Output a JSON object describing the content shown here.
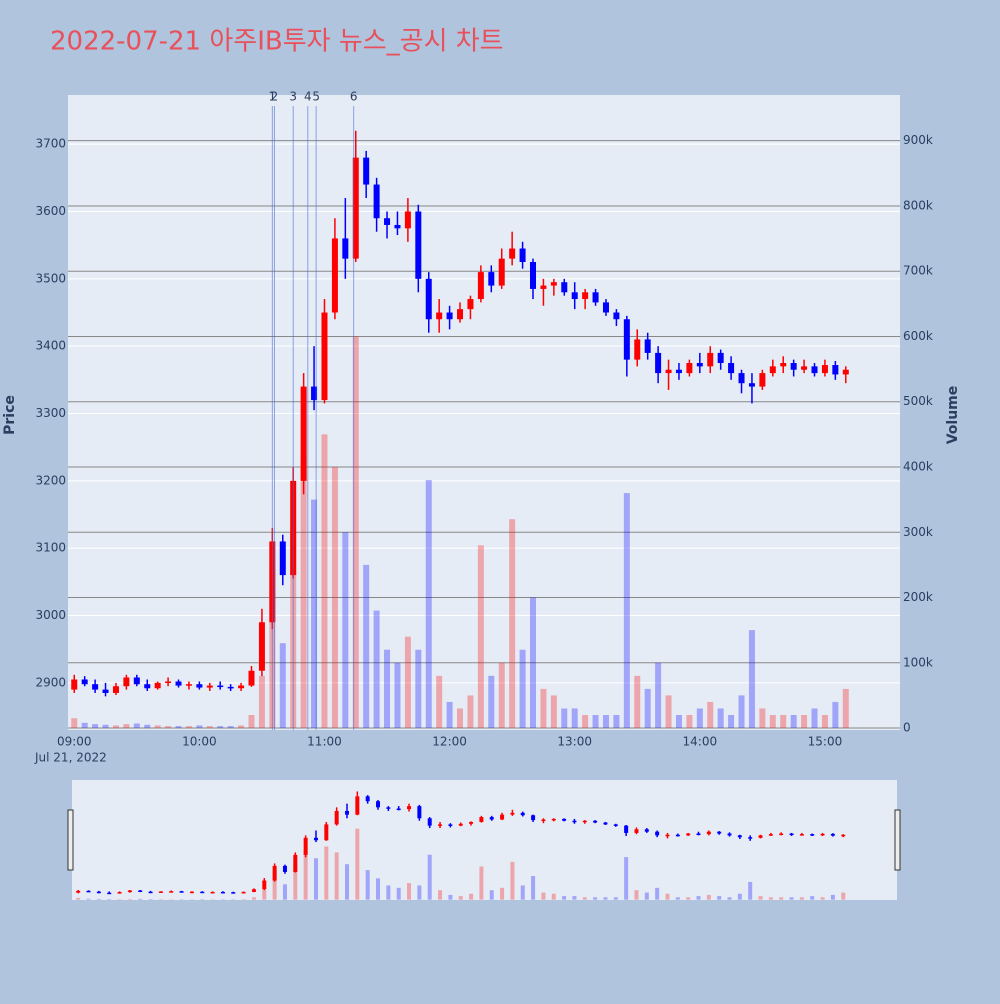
{
  "chart_data": {
    "type": "candlestick",
    "title": "2022-07-21 아주IB투자 뉴스_공시 차트",
    "y_title": "Price",
    "y2_title": "Volume",
    "x_date_label": "Jul 21, 2022",
    "increasing_color": "#ff0000",
    "decreasing_color": "#0000ff",
    "x": [
      "09:00",
      "09:05",
      "09:10",
      "09:15",
      "09:20",
      "09:25",
      "09:30",
      "09:35",
      "09:40",
      "09:45",
      "09:50",
      "09:55",
      "10:00",
      "10:05",
      "10:10",
      "10:15",
      "10:20",
      "10:25",
      "10:30",
      "10:35",
      "10:40",
      "10:45",
      "10:50",
      "10:55",
      "11:00",
      "11:05",
      "11:10",
      "11:15",
      "11:20",
      "11:25",
      "11:30",
      "11:35",
      "11:40",
      "11:45",
      "11:50",
      "11:55",
      "12:00",
      "12:05",
      "12:10",
      "12:15",
      "12:20",
      "12:25",
      "12:30",
      "12:35",
      "12:40",
      "12:45",
      "12:50",
      "12:55",
      "13:00",
      "13:05",
      "13:10",
      "13:15",
      "13:20",
      "13:25",
      "13:30",
      "13:35",
      "13:40",
      "13:45",
      "13:50",
      "13:55",
      "14:00",
      "14:05",
      "14:10",
      "14:15",
      "14:20",
      "14:25",
      "14:30",
      "14:35",
      "14:40",
      "14:45",
      "14:50",
      "14:55",
      "15:00",
      "15:05",
      "15:10"
    ],
    "open": [
      2890,
      2905,
      2898,
      2890,
      2885,
      2895,
      2908,
      2898,
      2892,
      2900,
      2902,
      2896,
      2898,
      2893,
      2896,
      2894,
      2892,
      2896,
      2918,
      2990,
      3110,
      3060,
      3200,
      3340,
      3320,
      3450,
      3560,
      3530,
      3680,
      3640,
      3590,
      3580,
      3575,
      3600,
      3500,
      3440,
      3450,
      3440,
      3455,
      3470,
      3510,
      3490,
      3530,
      3545,
      3525,
      3485,
      3490,
      3495,
      3480,
      3470,
      3480,
      3465,
      3450,
      3440,
      3380,
      3410,
      3390,
      3360,
      3365,
      3360,
      3375,
      3370,
      3390,
      3375,
      3360,
      3345,
      3340,
      3360,
      3370,
      3375,
      3365,
      3370,
      3360,
      3372,
      3358
    ],
    "high": [
      2912,
      2910,
      2905,
      2900,
      2900,
      2912,
      2912,
      2905,
      2902,
      2908,
      2905,
      2902,
      2902,
      2900,
      2902,
      2898,
      2900,
      2925,
      3010,
      3130,
      3120,
      3220,
      3360,
      3400,
      3470,
      3590,
      3620,
      3720,
      3690,
      3650,
      3600,
      3600,
      3620,
      3610,
      3510,
      3470,
      3460,
      3465,
      3475,
      3520,
      3520,
      3545,
      3570,
      3555,
      3530,
      3500,
      3500,
      3500,
      3495,
      3485,
      3485,
      3470,
      3455,
      3445,
      3425,
      3420,
      3400,
      3380,
      3375,
      3380,
      3390,
      3400,
      3395,
      3385,
      3365,
      3360,
      3365,
      3380,
      3385,
      3380,
      3380,
      3375,
      3380,
      3378,
      3370
    ],
    "low": [
      2885,
      2895,
      2885,
      2880,
      2882,
      2890,
      2895,
      2888,
      2890,
      2895,
      2893,
      2890,
      2890,
      2888,
      2890,
      2888,
      2888,
      2894,
      2910,
      2980,
      3045,
      3055,
      3180,
      3305,
      3315,
      3440,
      3500,
      3525,
      3620,
      3570,
      3560,
      3565,
      3555,
      3480,
      3420,
      3420,
      3425,
      3435,
      3440,
      3465,
      3480,
      3485,
      3520,
      3515,
      3470,
      3460,
      3475,
      3475,
      3455,
      3455,
      3460,
      3445,
      3430,
      3355,
      3370,
      3380,
      3345,
      3335,
      3350,
      3355,
      3360,
      3360,
      3365,
      3350,
      3330,
      3315,
      3335,
      3355,
      3360,
      3355,
      3360,
      3355,
      3355,
      3350,
      3345
    ],
    "close": [
      2905,
      2898,
      2890,
      2885,
      2895,
      2908,
      2898,
      2892,
      2900,
      2902,
      2896,
      2898,
      2893,
      2896,
      2894,
      2892,
      2896,
      2918,
      2990,
      3110,
      3060,
      3200,
      3340,
      3320,
      3450,
      3560,
      3530,
      3680,
      3640,
      3590,
      3580,
      3575,
      3600,
      3500,
      3440,
      3450,
      3440,
      3455,
      3470,
      3510,
      3490,
      3530,
      3545,
      3525,
      3485,
      3490,
      3495,
      3480,
      3470,
      3480,
      3465,
      3450,
      3440,
      3380,
      3410,
      3390,
      3360,
      3365,
      3360,
      3375,
      3370,
      3390,
      3375,
      3360,
      3345,
      3340,
      3360,
      3370,
      3375,
      3365,
      3370,
      3360,
      3372,
      3358,
      3365
    ],
    "volume": [
      15000,
      8000,
      6000,
      5000,
      4000,
      6000,
      7000,
      5000,
      4000,
      3000,
      3000,
      3000,
      4000,
      3000,
      3000,
      3000,
      4000,
      20000,
      80000,
      250000,
      130000,
      300000,
      420000,
      350000,
      450000,
      400000,
      300000,
      600000,
      250000,
      180000,
      120000,
      100000,
      140000,
      120000,
      380000,
      80000,
      40000,
      30000,
      50000,
      280000,
      80000,
      100000,
      320000,
      120000,
      200000,
      60000,
      50000,
      30000,
      30000,
      20000,
      20000,
      20000,
      20000,
      360000,
      80000,
      60000,
      100000,
      50000,
      20000,
      20000,
      30000,
      40000,
      30000,
      20000,
      50000,
      150000,
      30000,
      20000,
      20000,
      20000,
      20000,
      30000,
      20000,
      40000,
      60000
    ],
    "xlim": [
      "08:57",
      "15:36"
    ],
    "xticks": [
      "09:00",
      "10:00",
      "11:00",
      "12:00",
      "13:00",
      "14:00",
      "15:00"
    ],
    "ylim": [
      2830,
      3773
    ],
    "yticks": [
      2900,
      3000,
      3100,
      3200,
      3300,
      3400,
      3500,
      3600,
      3700
    ],
    "y2lim": [
      -3000,
      970000
    ],
    "y2ticks": [
      0,
      {
        "value": 100000,
        "label": "100k"
      },
      {
        "value": 200000,
        "label": "200k"
      },
      {
        "value": 300000,
        "label": "300k"
      },
      {
        "value": 400000,
        "label": "400k"
      },
      {
        "value": 500000,
        "label": "500k"
      },
      {
        "value": 600000,
        "label": "600k"
      },
      {
        "value": 700000,
        "label": "700k"
      },
      {
        "value": 800000,
        "label": "800k"
      },
      {
        "value": 900000,
        "label": "900k"
      }
    ],
    "events": [
      {
        "x": "10:35",
        "label": "1"
      },
      {
        "x": "10:36",
        "label": "2"
      },
      {
        "x": "10:45",
        "label": "3"
      },
      {
        "x": "10:52",
        "label": "4"
      },
      {
        "x": "10:56",
        "label": "5"
      },
      {
        "x": "11:14",
        "label": "6"
      }
    ],
    "grid": true
  }
}
